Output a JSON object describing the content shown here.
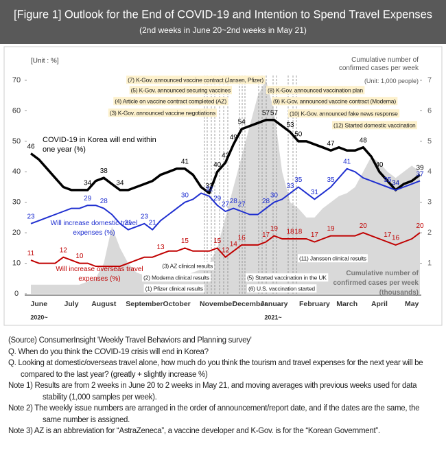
{
  "chart_data": {
    "type": "line",
    "title": "[Figure 1] Outlook for the End of COVID-19 and Intention to Spend Travel Expenses",
    "subtitle": "(2nd weeks in June 20~2nd weeks in May 21)",
    "y_label": "[Unit : %]",
    "y2_label": "Cumulative number of confirmed cases per week",
    "y2_unit": "(Unit: 1,000 people)",
    "year_labels": [
      "2020~",
      "2021~"
    ],
    "categories": [
      null,
      "June",
      null,
      null,
      null,
      "July",
      null,
      null,
      null,
      "August",
      null,
      null,
      null,
      null,
      "September",
      null,
      null,
      null,
      "October",
      null,
      null,
      null,
      null,
      "November",
      null,
      null,
      null,
      "December",
      null,
      null,
      "January",
      null,
      null,
      null,
      null,
      "February",
      null,
      null,
      null,
      "March",
      null,
      null,
      null,
      "April",
      null,
      null,
      null,
      "May",
      null
    ],
    "ylim": [
      0,
      70
    ],
    "yticks": [
      0,
      10,
      20,
      30,
      40,
      50,
      60,
      70
    ],
    "y2lim": [
      0,
      7
    ],
    "y2ticks": [
      1,
      2,
      3,
      4,
      5,
      6,
      7
    ],
    "series": [
      {
        "name": "Cumulative number of confirmed cases per week (thousands)",
        "type": "area",
        "axis": "y2",
        "color": "#d9d9d9",
        "values": [
          0.3,
          0.3,
          0.3,
          0.3,
          0.3,
          0.3,
          0.3,
          0.4,
          0.5,
          1.0,
          2.2,
          1.5,
          1.0,
          0.7,
          0.6,
          0.5,
          0.5,
          0.6,
          0.6,
          0.6,
          0.7,
          0.8,
          1.0,
          1.5,
          2.5,
          3.5,
          4.5,
          5.5,
          6.5,
          7.0,
          6.0,
          4.0,
          3.0,
          2.8,
          2.5,
          2.5,
          2.8,
          3.0,
          3.2,
          3.3,
          3.5,
          4.0,
          4.5,
          4.3,
          4.0,
          3.8,
          4.0,
          4.2,
          4.0
        ]
      },
      {
        "name": "COVID-19 in Korea will end within one year (%)",
        "color": "#000000",
        "values": [
          46,
          44,
          41,
          38,
          35,
          34,
          34,
          34,
          37,
          38,
          36,
          34,
          34,
          35,
          36,
          37,
          39,
          40,
          41,
          41,
          39,
          35,
          33,
          40,
          43,
          49,
          54,
          55,
          56,
          57,
          57,
          55,
          53,
          50,
          50,
          49,
          48,
          47,
          48,
          47,
          47,
          48,
          45,
          40,
          37,
          34,
          36,
          37,
          39
        ],
        "value_labels": [
          "46",
          null,
          null,
          null,
          null,
          null,
          null,
          "34",
          null,
          "38",
          null,
          "34",
          null,
          null,
          null,
          null,
          null,
          null,
          null,
          "41",
          null,
          null,
          "33",
          "40",
          "43",
          "49",
          "54",
          null,
          null,
          "57",
          "57",
          null,
          "53",
          "50",
          null,
          null,
          null,
          "47",
          null,
          null,
          null,
          "48",
          null,
          "40",
          null,
          "34",
          null,
          null,
          "39"
        ]
      },
      {
        "name": "Will increase domestic travel expenses (%)",
        "color": "#1f2fd0",
        "values": [
          23,
          24,
          25,
          26,
          27,
          28,
          28,
          29,
          29,
          28,
          26,
          23,
          21,
          22,
          23,
          21,
          24,
          26,
          28,
          30,
          31,
          33,
          32,
          29,
          27,
          28,
          27,
          26,
          26,
          28,
          30,
          31,
          33,
          35,
          33,
          31,
          33,
          35,
          38,
          41,
          40,
          38,
          37,
          36,
          35,
          34,
          35,
          36,
          37
        ],
        "value_labels": [
          "23",
          null,
          null,
          null,
          null,
          null,
          null,
          "29",
          null,
          "28",
          null,
          null,
          "21",
          null,
          "23",
          "21",
          null,
          null,
          null,
          "30",
          null,
          null,
          "32",
          "29",
          "27",
          "28",
          "27",
          null,
          null,
          "28",
          "30",
          null,
          "33",
          "35",
          null,
          "31",
          null,
          "35",
          null,
          "41",
          null,
          null,
          null,
          null,
          "35",
          "34",
          null,
          null,
          "37"
        ]
      },
      {
        "name": "Will increase overseas travel expenses (%)",
        "color": "#c00000",
        "values": [
          11,
          10,
          10,
          10,
          12,
          11,
          10,
          10,
          9,
          9,
          9,
          9,
          10,
          11,
          12,
          12,
          13,
          14,
          14,
          15,
          14,
          14,
          14,
          15,
          12,
          14,
          16,
          16,
          16,
          17,
          19,
          18,
          18,
          18,
          18,
          17,
          18,
          19,
          19,
          19,
          19,
          20,
          19,
          18,
          17,
          16,
          17,
          18,
          20
        ],
        "value_labels": [
          "11",
          null,
          null,
          null,
          "12",
          null,
          "10",
          null,
          null,
          null,
          null,
          null,
          null,
          null,
          null,
          null,
          "13",
          null,
          null,
          "15",
          null,
          null,
          null,
          "15",
          "12",
          "14",
          "16",
          null,
          null,
          "17",
          "19",
          null,
          "18",
          "18",
          null,
          "17",
          null,
          "19",
          null,
          null,
          null,
          "20",
          null,
          null,
          "17",
          "16",
          null,
          null,
          "20"
        ]
      }
    ],
    "annotations": [
      "(7) K-Gov. announced vaccine contract (Jansen, Pfizer)",
      "(5) K-Gov. announced securing vaccines",
      "(4) Article on vaccine contract completed (AZ)",
      "(3) K-Gov. announced vaccine negotiations",
      "(8) K-Gov. announced vaccination plan",
      "(9) K-Gov. announced vaccine contract (Moderna)",
      "(10) K-Gov. announced fake news response",
      "(12) Started domestic vaccination",
      "(3) AZ clinical results",
      "(2) Moderna clinical results",
      "(1) Pfizer clinical results",
      "(11) Janssen clinical results",
      "(5) Started vaccination in the UK",
      "(6) U.S. vaccination started"
    ],
    "notes": [
      "(Source) ConsumerInsight 'Weekly Travel Behaviors and Planning survey'",
      "Q. When do you think the COVID-19 crisis will end in Korea?",
      "Q. Looking at domestic/overseas travel alone, how much do you think the tourism and travel expenses for the next year will be compared to the last year?  (greatly + slightly increase %)",
      "Note 1) Results are from 2 weeks in June 20 to 2 weeks in May 21, and moving averages with previous weeks used for data stability (1,000 samples per week).",
      "Note 2) The weekly issue numbers are arranged in the order of announcement/report date, and if the dates are the same, the same number is assigned.",
      "Note 3) AZ is an abbreviation for “AstraZeneca”, a vaccine developer and K-Gov. is for the “Korean Government”."
    ]
  }
}
